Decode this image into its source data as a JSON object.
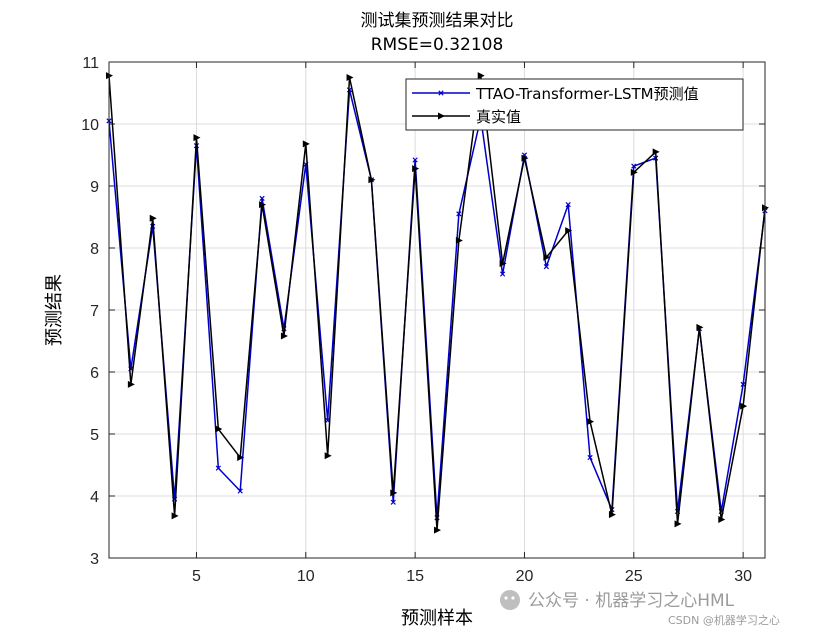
{
  "chart_data": {
    "type": "line",
    "title": "测试集预测结果对比",
    "subtitle": "RMSE=0.32108",
    "xlabel": "预测样本",
    "ylabel": "预测结果",
    "xlim": [
      1,
      31
    ],
    "ylim": [
      3,
      11
    ],
    "xticks": [
      5,
      10,
      15,
      20,
      25,
      30
    ],
    "yticks": [
      3,
      4,
      5,
      6,
      7,
      8,
      9,
      10,
      11
    ],
    "grid": true,
    "legend_position": "top-right",
    "x": [
      1,
      2,
      3,
      4,
      5,
      6,
      7,
      8,
      9,
      10,
      11,
      12,
      13,
      14,
      15,
      16,
      17,
      18,
      19,
      20,
      21,
      22,
      23,
      24,
      25,
      26,
      27,
      28,
      29,
      30,
      31
    ],
    "series": [
      {
        "name": "TTAO-Transformer-LSTM预测值",
        "color": "#0000cc",
        "marker": "x",
        "values": [
          10.05,
          6.05,
          8.35,
          3.95,
          9.65,
          4.45,
          4.08,
          8.8,
          6.7,
          9.35,
          5.22,
          10.55,
          9.1,
          3.9,
          9.42,
          3.65,
          8.55,
          10.1,
          7.58,
          9.5,
          7.7,
          8.7,
          4.62,
          3.78,
          9.32,
          9.45,
          3.75,
          6.7,
          3.75,
          5.8,
          8.6
        ]
      },
      {
        "name": "真实值",
        "color": "#000000",
        "marker": "triangle-right",
        "values": [
          10.78,
          5.8,
          8.48,
          3.68,
          9.78,
          5.08,
          4.62,
          8.7,
          6.58,
          9.68,
          4.65,
          10.75,
          9.1,
          4.05,
          9.28,
          3.45,
          8.12,
          10.78,
          7.75,
          9.45,
          7.85,
          8.28,
          5.2,
          3.7,
          9.22,
          9.55,
          3.55,
          6.72,
          3.62,
          5.45,
          8.65
        ]
      }
    ]
  },
  "watermark": {
    "main": "公众号 · 机器学习之心HML",
    "sub": "CSDN @机器学习之心"
  }
}
